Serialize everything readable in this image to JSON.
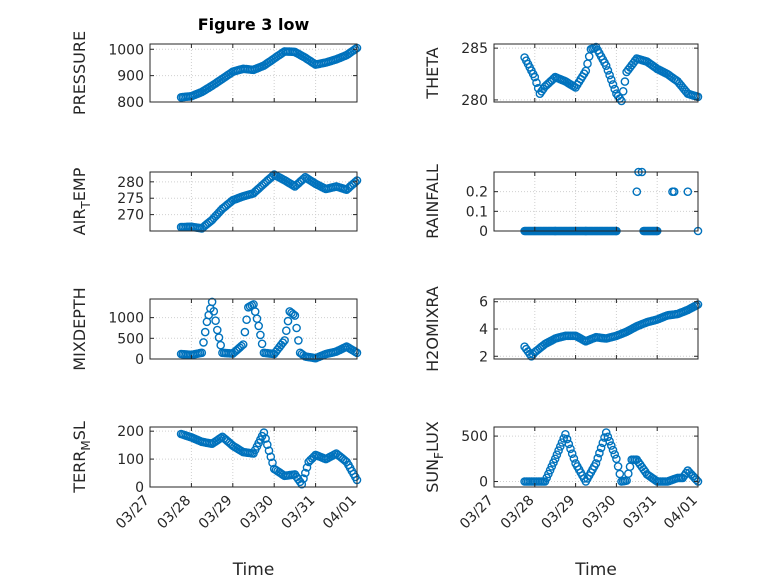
{
  "figure": {
    "title": "Figure 3 low",
    "marker_color": "#0072BD",
    "x_tick_labels": [
      "03/27",
      "03/28",
      "03/29",
      "03/30",
      "03/31",
      "04/01"
    ],
    "xlabel": "Time"
  },
  "chart_data": [
    {
      "type": "scatter",
      "ylabel": "PRESSURE",
      "ylim": [
        800,
        1020
      ],
      "yticks": [
        800,
        900,
        1000
      ],
      "xlim": [
        "03/27",
        "04/01"
      ],
      "grid": true,
      "series": [
        {
          "x": [
            "03/27 18:00",
            "03/28 00:00",
            "03/28 06:00",
            "03/28 12:00",
            "03/28 18:00",
            "03/29 00:00",
            "03/29 06:00",
            "03/29 12:00",
            "03/29 18:00",
            "03/30 00:00",
            "03/30 06:00",
            "03/30 12:00",
            "03/30 18:00",
            "03/31 00:00",
            "03/31 06:00",
            "03/31 12:00",
            "03/31 18:00",
            "04/01 00:00"
          ],
          "y": [
            818,
            822,
            838,
            862,
            888,
            915,
            926,
            922,
            938,
            965,
            992,
            990,
            968,
            942,
            950,
            962,
            978,
            1005
          ]
        }
      ]
    },
    {
      "type": "scatter",
      "ylabel": "THETA",
      "ylim": [
        279.8,
        285.4
      ],
      "yticks": [
        280,
        285
      ],
      "xlim": [
        "03/27",
        "04/01"
      ],
      "grid": true,
      "series": [
        {
          "x": [
            "03/27 18:00",
            "03/28 00:00",
            "03/28 03:00",
            "03/28 06:00",
            "03/28 12:00",
            "03/28 18:00",
            "03/29 00:00",
            "03/29 06:00",
            "03/29 09:00",
            "03/29 12:00",
            "03/29 18:00",
            "03/30 00:00",
            "03/30 03:00",
            "03/30 06:00",
            "03/30 12:00",
            "03/30 18:00",
            "03/31 00:00",
            "03/31 06:00",
            "03/31 12:00",
            "03/31 18:00",
            "04/01 00:00"
          ],
          "y": [
            284.1,
            282.2,
            280.6,
            281.3,
            282.2,
            281.8,
            281.2,
            282.8,
            284.9,
            285.1,
            283.3,
            280.6,
            279.9,
            282.7,
            284.0,
            283.7,
            283.0,
            282.5,
            281.8,
            280.6,
            280.3
          ]
        }
      ]
    },
    {
      "type": "scatter",
      "ylabel": "AIR_TEMP",
      "ylim": [
        265,
        283
      ],
      "yticks": [
        270,
        275,
        280
      ],
      "xlim": [
        "03/27",
        "04/01"
      ],
      "grid": true,
      "series": [
        {
          "x": [
            "03/27 18:00",
            "03/28 00:00",
            "03/28 06:00",
            "03/28 12:00",
            "03/28 18:00",
            "03/29 00:00",
            "03/29 06:00",
            "03/29 12:00",
            "03/29 18:00",
            "03/30 00:00",
            "03/30 06:00",
            "03/30 12:00",
            "03/30 18:00",
            "03/31 00:00",
            "03/31 06:00",
            "03/31 12:00",
            "03/31 18:00",
            "04/01 00:00"
          ],
          "y": [
            266.2,
            266.3,
            265.8,
            268.4,
            271.8,
            274.4,
            275.6,
            276.5,
            279.4,
            282.2,
            280.5,
            278.6,
            281.4,
            279.4,
            277.8,
            278.6,
            277.6,
            280.4
          ]
        }
      ]
    },
    {
      "type": "scatter",
      "ylabel": "RAINFALL",
      "ylim": [
        0,
        0.3
      ],
      "yticks": [
        0,
        0.1,
        0.2
      ],
      "xlim": [
        "03/27",
        "04/01"
      ],
      "grid": true,
      "series": [
        {
          "x": [
            "03/27 18:00",
            "03/28 12:00",
            "03/29 06:00",
            "03/30 00:00",
            "03/30 12:00",
            "03/30 13:00",
            "03/30 15:00",
            "03/30 16:00",
            "03/31 00:00",
            "03/31 09:00",
            "03/31 10:00",
            "03/31 18:00",
            "04/01 00:00"
          ],
          "y": [
            0,
            0,
            0,
            0,
            0.2,
            0.3,
            0.3,
            0,
            0,
            0.2,
            0.2,
            0.2,
            0
          ]
        }
      ]
    },
    {
      "type": "scatter",
      "ylabel": "MIXDEPTH",
      "ylim": [
        0,
        1450
      ],
      "yticks": [
        0,
        500,
        1000
      ],
      "xlim": [
        "03/27",
        "04/01"
      ],
      "grid": true,
      "series": [
        {
          "x": [
            "03/27 18:00",
            "03/28 00:00",
            "03/28 06:00",
            "03/28 09:00",
            "03/28 12:00",
            "03/28 15:00",
            "03/28 18:00",
            "03/29 00:00",
            "03/29 06:00",
            "03/29 09:00",
            "03/29 12:00",
            "03/29 15:00",
            "03/29 18:00",
            "03/30 00:00",
            "03/30 06:00",
            "03/30 09:00",
            "03/30 12:00",
            "03/30 15:00",
            "03/30 18:00",
            "03/31 00:00",
            "03/31 06:00",
            "03/31 12:00",
            "03/31 18:00",
            "04/01 00:00"
          ],
          "y": [
            120,
            100,
            150,
            900,
            1380,
            700,
            150,
            130,
            350,
            1250,
            1320,
            800,
            150,
            120,
            450,
            1150,
            1050,
            150,
            60,
            20,
            120,
            180,
            300,
            150
          ]
        }
      ]
    },
    {
      "type": "scatter",
      "ylabel": "H2OMIXRA",
      "ylim": [
        1.8,
        6.2
      ],
      "yticks": [
        2,
        4,
        6
      ],
      "xlim": [
        "03/27",
        "04/01"
      ],
      "grid": true,
      "series": [
        {
          "x": [
            "03/27 18:00",
            "03/27 22:00",
            "03/28 00:00",
            "03/28 06:00",
            "03/28 12:00",
            "03/28 18:00",
            "03/29 00:00",
            "03/29 06:00",
            "03/29 12:00",
            "03/29 18:00",
            "03/30 00:00",
            "03/30 06:00",
            "03/30 12:00",
            "03/30 18:00",
            "03/31 00:00",
            "03/31 06:00",
            "03/31 12:00",
            "03/31 18:00",
            "04/01 00:00"
          ],
          "y": [
            2.7,
            2.0,
            2.3,
            2.9,
            3.3,
            3.5,
            3.5,
            3.1,
            3.4,
            3.3,
            3.5,
            3.8,
            4.2,
            4.5,
            4.7,
            5.0,
            5.1,
            5.4,
            5.8
          ]
        }
      ]
    },
    {
      "type": "scatter",
      "ylabel": "TERR_MSL",
      "ylim": [
        0,
        215
      ],
      "yticks": [
        0,
        100,
        200
      ],
      "xlim": [
        "03/27",
        "04/01"
      ],
      "grid": true,
      "series": [
        {
          "x": [
            "03/27 18:00",
            "03/28 00:00",
            "03/28 06:00",
            "03/28 12:00",
            "03/28 18:00",
            "03/29 00:00",
            "03/29 06:00",
            "03/29 12:00",
            "03/29 18:00",
            "03/30 00:00",
            "03/30 06:00",
            "03/30 12:00",
            "03/30 16:00",
            "03/30 20:00",
            "03/31 00:00",
            "03/31 06:00",
            "03/31 12:00",
            "03/31 18:00",
            "04/01 00:00"
          ],
          "y": [
            190,
            178,
            162,
            155,
            180,
            148,
            125,
            120,
            195,
            65,
            40,
            45,
            10,
            90,
            115,
            100,
            120,
            90,
            25
          ]
        }
      ]
    },
    {
      "type": "scatter",
      "ylabel": "SUN_FLUX",
      "ylim": [
        -60,
        600
      ],
      "yticks": [
        0,
        500
      ],
      "xlim": [
        "03/27",
        "04/01"
      ],
      "grid": true,
      "series": [
        {
          "x": [
            "03/27 18:00",
            "03/28 00:00",
            "03/28 06:00",
            "03/28 12:00",
            "03/28 18:00",
            "03/29 00:00",
            "03/29 06:00",
            "03/29 12:00",
            "03/29 18:00",
            "03/30 00:00",
            "03/30 03:00",
            "03/30 06:00",
            "03/30 09:00",
            "03/30 12:00",
            "03/30 18:00",
            "03/31 00:00",
            "03/31 06:00",
            "03/31 12:00",
            "03/31 15:00",
            "03/31 18:00",
            "04/01 00:00"
          ],
          "y": [
            0,
            0,
            0,
            250,
            520,
            200,
            0,
            200,
            540,
            250,
            0,
            10,
            240,
            240,
            80,
            0,
            0,
            40,
            40,
            120,
            0
          ]
        }
      ]
    }
  ]
}
